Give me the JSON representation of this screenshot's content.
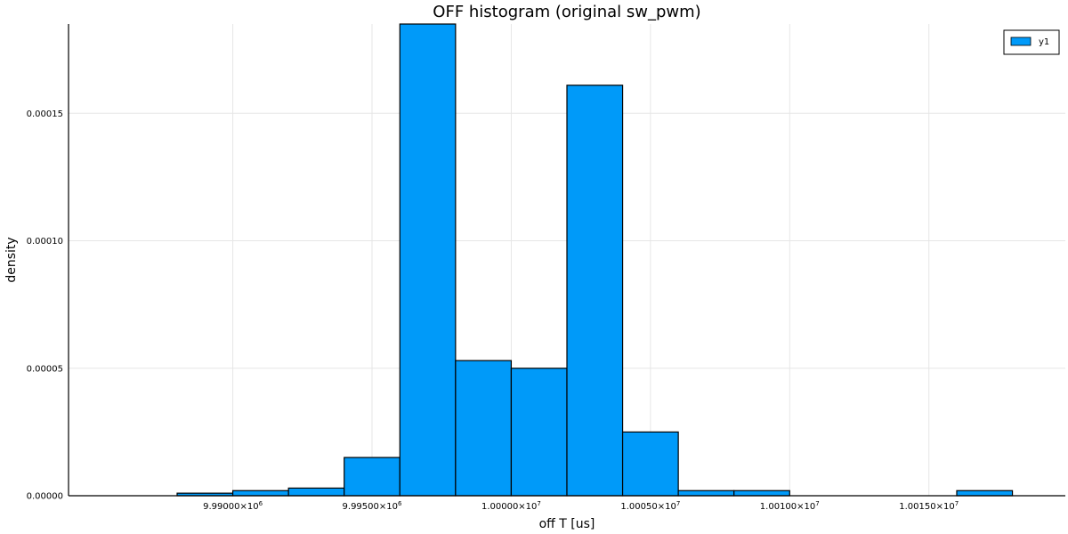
{
  "chart_data": {
    "type": "bar",
    "title": "OFF histogram (original sw_pwm)",
    "xlabel": "off T [us]",
    "ylabel": "density",
    "bin_edges": [
      9988000,
      9990000,
      9992000,
      9994000,
      9996000,
      9998000,
      10000000,
      10002000,
      10004000,
      10006000,
      10008000,
      10010000,
      10012000,
      10014000,
      10016000,
      10018000
    ],
    "values": [
      1e-06,
      2e-06,
      3e-06,
      1.5e-05,
      0.000185,
      5.3e-05,
      5e-05,
      0.000161,
      2.5e-05,
      2e-06,
      2e-06,
      0,
      0,
      0,
      2e-06
    ],
    "xlim": [
      9984100,
      10019900
    ],
    "ylim": [
      0,
      0.000185
    ],
    "xticks": [
      {
        "value": 9990000,
        "mantissa": "9.99000",
        "exp": "6"
      },
      {
        "value": 9995000,
        "mantissa": "9.99500",
        "exp": "6"
      },
      {
        "value": 10000000,
        "mantissa": "1.00000",
        "exp": "7"
      },
      {
        "value": 10005000,
        "mantissa": "1.00050",
        "exp": "7"
      },
      {
        "value": 10010000,
        "mantissa": "1.00100",
        "exp": "7"
      },
      {
        "value": 10015000,
        "mantissa": "1.00150",
        "exp": "7"
      }
    ],
    "yticks": [
      {
        "value": 0,
        "label": "0.00000"
      },
      {
        "value": 5e-05,
        "label": "0.00005"
      },
      {
        "value": 0.0001,
        "label": "0.00010"
      },
      {
        "value": 0.00015,
        "label": "0.00015"
      }
    ],
    "grid": true,
    "legend": {
      "position": "top-right",
      "entries": [
        {
          "name": "y1",
          "color": "#009af9"
        }
      ]
    },
    "bar_color": "#009af9"
  }
}
